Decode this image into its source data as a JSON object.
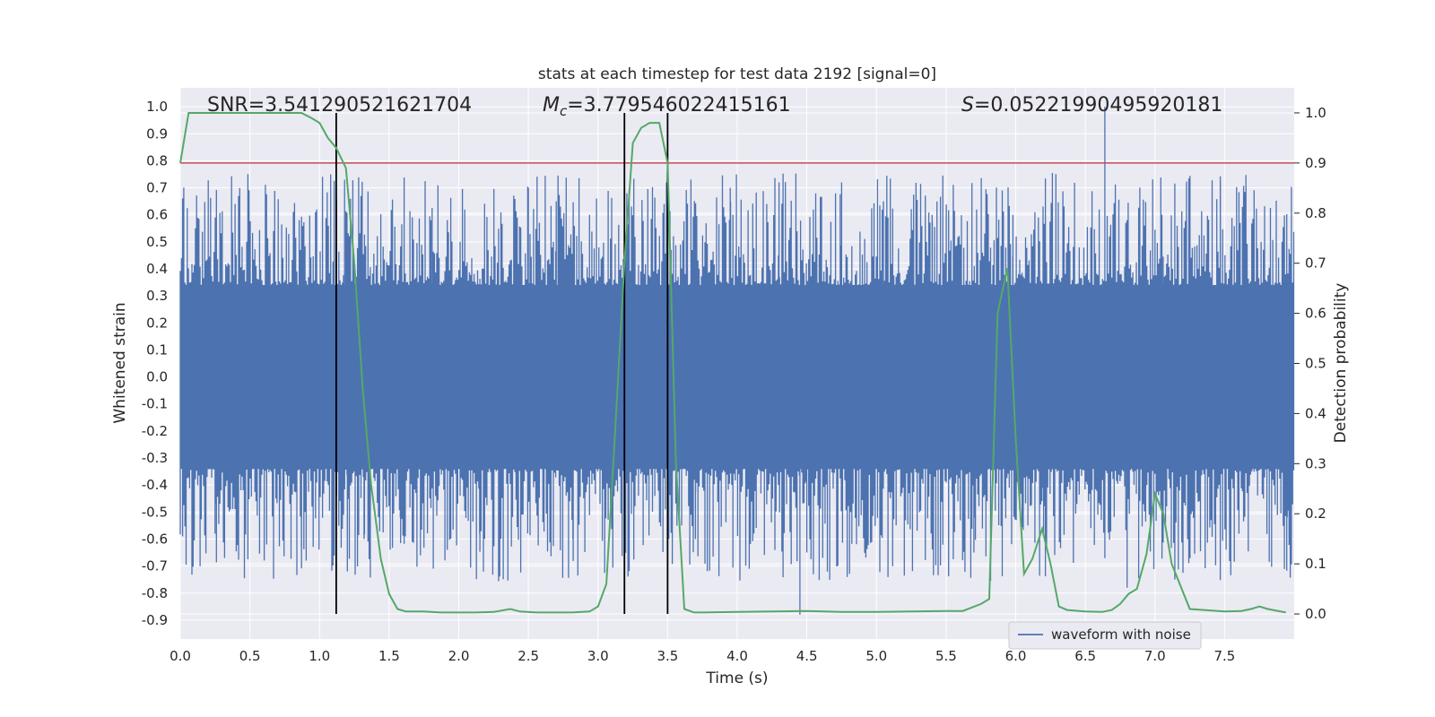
{
  "chart_data": {
    "type": "line",
    "title": "stats at each timestep for test data 2192 [signal=0]",
    "xlabel": "Time (s)",
    "ylabel": "Whitened strain",
    "ylabel_right": "Detection probability",
    "xlim": [
      0.0,
      8.0
    ],
    "ylim": [
      -0.97,
      1.07
    ],
    "ylim_right": [
      -0.05,
      1.05
    ],
    "x_ticks": [
      "0.0",
      "0.5",
      "1.0",
      "1.5",
      "2.0",
      "2.5",
      "3.0",
      "3.5",
      "4.0",
      "4.5",
      "5.0",
      "5.5",
      "6.0",
      "6.5",
      "7.0",
      "7.5"
    ],
    "y_ticks": [
      "1.0",
      "0.9",
      "0.8",
      "0.7",
      "0.6",
      "0.5",
      "0.4",
      "0.3",
      "0.2",
      "0.1",
      "0.0",
      "-0.1",
      "-0.2",
      "-0.3",
      "-0.4",
      "-0.5",
      "-0.6",
      "-0.7",
      "-0.8",
      "-0.9"
    ],
    "y_ticks_right": [
      "1.0",
      "0.9",
      "0.8",
      "0.7",
      "0.6",
      "0.5",
      "0.4",
      "0.3",
      "0.2",
      "0.1",
      "0.0"
    ],
    "grid": true,
    "annotations": {
      "snr": "SNR=3.541290521621704",
      "mc_symbol": "M",
      "mc_sub": "c",
      "mc_value": "=3.779546022415161",
      "s_symbol": "S",
      "s_value": "=0.05221990495920181"
    },
    "legend": {
      "label": "waveform with noise",
      "location": "lower-right"
    },
    "colors": {
      "waveform": "#4c72b0",
      "probability": "#55a868",
      "threshold": "#c44e52",
      "marker": "#000000",
      "background": "#eaeaf2"
    },
    "threshold_right": 0.9,
    "vertical_markers_x": [
      1.12,
      3.19,
      3.5
    ],
    "series": [
      {
        "name": "waveform with noise",
        "axis": "left",
        "noise": {
          "band": 0.34,
          "typical_peak": 0.45,
          "peaks": [
            [
              0.13,
              0.37
            ],
            [
              0.25,
              -0.58
            ],
            [
              0.5,
              0.52
            ],
            [
              0.62,
              -0.62
            ],
            [
              0.87,
              -0.63
            ],
            [
              0.98,
              0.62
            ],
            [
              1.18,
              0.73
            ],
            [
              1.2,
              -0.72
            ],
            [
              1.32,
              -0.6
            ],
            [
              1.58,
              -0.52
            ],
            [
              1.8,
              0.58
            ],
            [
              2.15,
              -0.58
            ],
            [
              2.5,
              0.7
            ],
            [
              2.7,
              0.65
            ],
            [
              2.82,
              -0.6
            ],
            [
              3.25,
              0.58
            ],
            [
              3.5,
              0.65
            ],
            [
              3.7,
              -0.6
            ],
            [
              3.95,
              0.7
            ],
            [
              4.3,
              0.72
            ],
            [
              4.45,
              -0.88
            ],
            [
              4.5,
              -0.65
            ],
            [
              4.75,
              0.72
            ],
            [
              5.05,
              0.65
            ],
            [
              5.4,
              0.6
            ],
            [
              5.7,
              -0.65
            ],
            [
              5.98,
              0.6
            ],
            [
              6.2,
              -0.58
            ],
            [
              6.6,
              0.62
            ],
            [
              6.64,
              1.0
            ],
            [
              6.8,
              -0.78
            ],
            [
              7.05,
              0.6
            ],
            [
              7.2,
              -0.6
            ],
            [
              7.47,
              0.72
            ],
            [
              7.65,
              0.68
            ],
            [
              7.95,
              -0.52
            ]
          ]
        }
      },
      {
        "name": "",
        "axis": "right",
        "x": [
          0.0,
          0.06,
          0.12,
          0.25,
          0.5,
          0.75,
          0.87,
          0.94,
          1.0,
          1.06,
          1.12,
          1.19,
          1.25,
          1.31,
          1.37,
          1.44,
          1.5,
          1.56,
          1.62,
          1.75,
          1.87,
          2.0,
          2.12,
          2.25,
          2.37,
          2.44,
          2.56,
          2.69,
          2.81,
          2.94,
          3.0,
          3.06,
          3.12,
          3.19,
          3.25,
          3.31,
          3.37,
          3.44,
          3.5,
          3.56,
          3.62,
          3.69,
          3.75,
          4.0,
          4.25,
          4.5,
          4.75,
          5.0,
          5.25,
          5.5,
          5.62,
          5.75,
          5.81,
          5.87,
          5.94,
          6.0,
          6.06,
          6.12,
          6.19,
          6.25,
          6.31,
          6.37,
          6.5,
          6.62,
          6.69,
          6.75,
          6.81,
          6.87,
          6.94,
          7.0,
          7.06,
          7.12,
          7.25,
          7.5,
          7.62,
          7.69,
          7.75,
          7.81,
          7.94
        ],
        "y": [
          0.9,
          1.0,
          1.0,
          1.0,
          1.0,
          1.0,
          1.0,
          0.99,
          0.98,
          0.95,
          0.93,
          0.89,
          0.7,
          0.45,
          0.26,
          0.11,
          0.04,
          0.01,
          0.005,
          0.005,
          0.003,
          0.003,
          0.003,
          0.004,
          0.01,
          0.005,
          0.003,
          0.003,
          0.003,
          0.005,
          0.015,
          0.06,
          0.35,
          0.7,
          0.94,
          0.97,
          0.98,
          0.98,
          0.9,
          0.3,
          0.01,
          0.003,
          0.003,
          0.004,
          0.005,
          0.006,
          0.004,
          0.004,
          0.005,
          0.006,
          0.006,
          0.02,
          0.03,
          0.6,
          0.69,
          0.35,
          0.08,
          0.11,
          0.17,
          0.1,
          0.015,
          0.008,
          0.005,
          0.004,
          0.008,
          0.02,
          0.04,
          0.05,
          0.12,
          0.24,
          0.2,
          0.1,
          0.01,
          0.005,
          0.006,
          0.01,
          0.015,
          0.01,
          0.003
        ]
      }
    ]
  }
}
